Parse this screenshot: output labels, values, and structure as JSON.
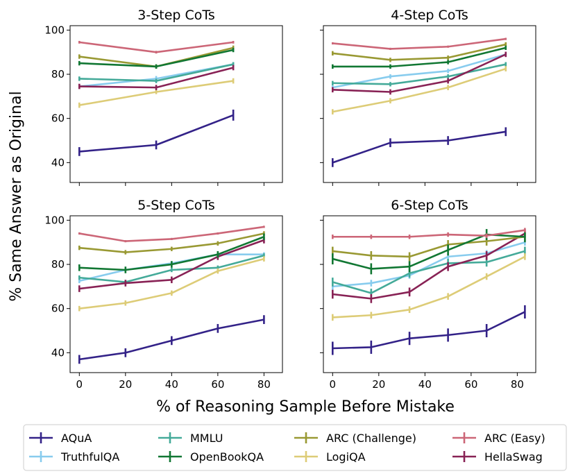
{
  "figure": {
    "ylabel": "% Same Answer as Original",
    "xlabel": "% of Reasoning Sample Before Mistake"
  },
  "colors": {
    "AQuA": "#332288",
    "TruthfulQA": "#88ccee",
    "MMLU": "#44aa99",
    "OpenBookQA": "#117733",
    "ARC (Challenge)": "#999933",
    "LogiQA": "#ddcc77",
    "ARC (Easy)": "#cc6677",
    "HellaSwag": "#882255"
  },
  "legend": [
    "AQuA",
    "TruthfulQA",
    "MMLU",
    "OpenBookQA",
    "ARC (Challenge)",
    "LogiQA",
    "ARC (Easy)",
    "HellaSwag"
  ],
  "chart_data": [
    {
      "type": "line",
      "title": "3-Step CoTs",
      "xlim": [
        -4,
        88
      ],
      "ylim": [
        31,
        102
      ],
      "xticks": [
        0,
        20,
        40,
        60,
        80
      ],
      "yticks": [
        40,
        60,
        80,
        100
      ],
      "x": [
        0,
        33.3,
        66.7
      ],
      "series": [
        {
          "name": "AQuA",
          "values": [
            45,
            48,
            61.5
          ],
          "err": [
            2,
            2,
            2.5
          ]
        },
        {
          "name": "TruthfulQA",
          "values": [
            74.5,
            78,
            84.5
          ],
          "err": [
            1,
            1.2,
            1
          ]
        },
        {
          "name": "MMLU",
          "values": [
            78,
            77,
            84.5
          ],
          "err": [
            1,
            1,
            1
          ]
        },
        {
          "name": "OpenBookQA",
          "values": [
            85,
            83.5,
            91
          ],
          "err": [
            1,
            1,
            1
          ]
        },
        {
          "name": "ARC (Challenge)",
          "values": [
            88,
            83.5,
            92
          ],
          "err": [
            1,
            1,
            1
          ]
        },
        {
          "name": "LogiQA",
          "values": [
            66,
            72,
            77
          ],
          "err": [
            1.2,
            1,
            1.2
          ]
        },
        {
          "name": "ARC (Easy)",
          "values": [
            94.5,
            90,
            94.5
          ],
          "err": [
            0.6,
            0.6,
            0.6
          ]
        },
        {
          "name": "HellaSwag",
          "values": [
            74.5,
            74,
            83
          ],
          "err": [
            1.2,
            1.2,
            1.2
          ]
        }
      ]
    },
    {
      "type": "line",
      "title": "4-Step CoTs",
      "xlim": [
        -4,
        88
      ],
      "ylim": [
        31,
        102
      ],
      "xticks": [
        0,
        20,
        40,
        60,
        80
      ],
      "yticks": [
        40,
        60,
        80,
        100
      ],
      "x": [
        0,
        25,
        50,
        75
      ],
      "series": [
        {
          "name": "AQuA",
          "values": [
            40,
            49,
            50,
            54
          ],
          "err": [
            2,
            2,
            2,
            2
          ]
        },
        {
          "name": "TruthfulQA",
          "values": [
            74,
            79,
            81.5,
            89
          ],
          "err": [
            1,
            1,
            1,
            1
          ]
        },
        {
          "name": "MMLU",
          "values": [
            76,
            75.5,
            79,
            84.5
          ],
          "err": [
            1,
            1,
            1,
            1
          ]
        },
        {
          "name": "OpenBookQA",
          "values": [
            83.5,
            83.5,
            85.5,
            92
          ],
          "err": [
            1,
            1,
            1,
            1
          ]
        },
        {
          "name": "ARC (Challenge)",
          "values": [
            89.5,
            86.5,
            87.5,
            93.5
          ],
          "err": [
            1,
            1,
            1,
            1
          ]
        },
        {
          "name": "LogiQA",
          "values": [
            63,
            68,
            74,
            82.5
          ],
          "err": [
            1.2,
            1.2,
            1.2,
            1.2
          ]
        },
        {
          "name": "ARC (Easy)",
          "values": [
            94,
            91.5,
            92.5,
            96
          ],
          "err": [
            0.5,
            0.5,
            0.5,
            0.5
          ]
        },
        {
          "name": "HellaSwag",
          "values": [
            73,
            72,
            77,
            89
          ],
          "err": [
            1.2,
            1.2,
            1.2,
            1.2
          ]
        }
      ]
    },
    {
      "type": "line",
      "title": "5-Step CoTs",
      "xlim": [
        -4,
        88
      ],
      "ylim": [
        31,
        102
      ],
      "xticks": [
        0,
        20,
        40,
        60,
        80
      ],
      "yticks": [
        40,
        60,
        80,
        100
      ],
      "x": [
        0,
        20,
        40,
        60,
        80
      ],
      "series": [
        {
          "name": "AQuA",
          "values": [
            37,
            40,
            45.5,
            51,
            55
          ],
          "err": [
            2,
            2,
            2,
            2,
            2
          ]
        },
        {
          "name": "TruthfulQA",
          "values": [
            72.5,
            77.5,
            80.5,
            84.5,
            84.5
          ],
          "err": [
            1,
            1,
            1,
            1,
            1
          ]
        },
        {
          "name": "MMLU",
          "values": [
            74,
            72,
            77.5,
            78.5,
            84
          ],
          "err": [
            1,
            1,
            1,
            1,
            1
          ]
        },
        {
          "name": "OpenBookQA",
          "values": [
            78.5,
            77.5,
            80,
            84.5,
            92.5
          ],
          "err": [
            1.5,
            1.5,
            1.5,
            1.5,
            1.5
          ]
        },
        {
          "name": "ARC (Challenge)",
          "values": [
            87.5,
            85.5,
            87,
            89.5,
            94
          ],
          "err": [
            1,
            1,
            1,
            1,
            1
          ]
        },
        {
          "name": "LogiQA",
          "values": [
            60,
            62.5,
            67,
            77,
            82.5
          ],
          "err": [
            1.2,
            1.2,
            1.2,
            1.2,
            1.2
          ]
        },
        {
          "name": "ARC (Easy)",
          "values": [
            94,
            90.5,
            91.5,
            94,
            97
          ],
          "err": [
            0.5,
            0.5,
            0.5,
            0.5,
            0.5
          ]
        },
        {
          "name": "HellaSwag",
          "values": [
            69,
            71.5,
            73,
            83.5,
            91
          ],
          "err": [
            1.5,
            1.5,
            1.5,
            1.5,
            1.5
          ]
        }
      ]
    },
    {
      "type": "line",
      "title": "6-Step CoTs",
      "xlim": [
        -4,
        88
      ],
      "ylim": [
        31,
        102
      ],
      "xticks": [
        0,
        20,
        40,
        60,
        80
      ],
      "yticks": [
        40,
        60,
        80,
        100
      ],
      "x": [
        0,
        16.7,
        33.3,
        50,
        66.7,
        83.3
      ],
      "series": [
        {
          "name": "AQuA",
          "values": [
            42,
            42.5,
            46.5,
            48,
            50,
            58.5
          ],
          "err": [
            3,
            3,
            3,
            3,
            3,
            3
          ]
        },
        {
          "name": "TruthfulQA",
          "values": [
            70,
            71.5,
            75,
            83.5,
            85,
            90
          ],
          "err": [
            1.5,
            1.5,
            1.5,
            1.5,
            1.5,
            1.5
          ]
        },
        {
          "name": "MMLU",
          "values": [
            72,
            67,
            76,
            80.5,
            81,
            86
          ],
          "err": [
            2,
            2,
            2,
            2,
            2,
            2
          ]
        },
        {
          "name": "OpenBookQA",
          "values": [
            82.5,
            78,
            79,
            86.5,
            93.5,
            92.5
          ],
          "err": [
            2.5,
            2.5,
            2.5,
            2.5,
            2.5,
            2.5
          ]
        },
        {
          "name": "ARC (Challenge)",
          "values": [
            86,
            84,
            83.5,
            89,
            90.5,
            92.5
          ],
          "err": [
            2,
            2,
            2,
            2,
            2,
            2
          ]
        },
        {
          "name": "LogiQA",
          "values": [
            56,
            57,
            59.5,
            65.5,
            74.5,
            83.5
          ],
          "err": [
            1.5,
            1.5,
            1.5,
            1.5,
            1.5,
            1.5
          ]
        },
        {
          "name": "ARC (Easy)",
          "values": [
            92.5,
            92.5,
            92.5,
            93.5,
            93,
            95.5
          ],
          "err": [
            1,
            1,
            1,
            1,
            1,
            1
          ]
        },
        {
          "name": "HellaSwag",
          "values": [
            66.5,
            64.5,
            67.5,
            79,
            84,
            94
          ],
          "err": [
            2,
            2,
            2,
            2,
            2,
            2
          ]
        }
      ]
    }
  ]
}
